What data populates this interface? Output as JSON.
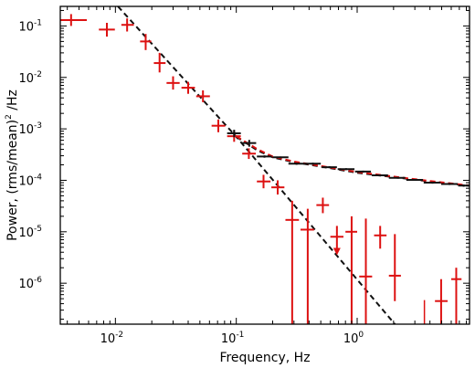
{
  "chart_data": {
    "type": "scatter",
    "title": "",
    "xlabel": "Frequency, Hz",
    "ylabel_prefix": "Power, (rms/mean)",
    "ylabel_sup": "2",
    "ylabel_suffix": " /Hz",
    "xscale": "log",
    "yscale": "log",
    "xlim": [
      0.0035,
      8.5
    ],
    "ylim": [
      1.6e-07,
      0.24
    ],
    "grid": false,
    "legend": "none",
    "x_ticks": [
      {
        "value": 0.01,
        "base": "10",
        "exp": "-2"
      },
      {
        "value": 0.1,
        "base": "10",
        "exp": "-1"
      },
      {
        "value": 1,
        "label": "10",
        "exp": "0"
      }
    ],
    "y_ticks": [
      {
        "value": 1e-06,
        "base": "10",
        "exp": "-6"
      },
      {
        "value": 1e-05,
        "base": "10",
        "exp": "-5"
      },
      {
        "value": 0.0001,
        "base": "10",
        "exp": "-4"
      },
      {
        "value": 0.001,
        "base": "10",
        "exp": "-3"
      },
      {
        "value": 0.01,
        "base": "10",
        "exp": "-2"
      },
      {
        "value": 0.1,
        "base": "10",
        "exp": "-1"
      }
    ],
    "colors": {
      "data": "#dd1111",
      "model": "#111111",
      "model_alt": "#dd1111",
      "axes": "#000000"
    },
    "series": [
      {
        "style": "red-crosses",
        "points": [
          {
            "x": 0.0043,
            "xlo": 0.0035,
            "xhi": 0.0058,
            "y": 0.13,
            "ylo": 0.1,
            "yhi": 0.17
          },
          {
            "x": 0.0085,
            "xlo": 0.0073,
            "xhi": 0.0099,
            "y": 0.085,
            "ylo": 0.062,
            "yhi": 0.115
          },
          {
            "x": 0.0125,
            "xlo": 0.0112,
            "xhi": 0.0142,
            "y": 0.105,
            "ylo": 0.078,
            "yhi": 0.14
          },
          {
            "x": 0.0178,
            "xlo": 0.016,
            "xhi": 0.0198,
            "y": 0.05,
            "ylo": 0.034,
            "yhi": 0.07
          },
          {
            "x": 0.0232,
            "xlo": 0.0208,
            "xhi": 0.026,
            "y": 0.019,
            "ylo": 0.0125,
            "yhi": 0.03
          },
          {
            "x": 0.03,
            "xlo": 0.0265,
            "xhi": 0.034,
            "y": 0.0078,
            "ylo": 0.0058,
            "yhi": 0.0105
          },
          {
            "x": 0.04,
            "xlo": 0.0352,
            "xhi": 0.0455,
            "y": 0.0063,
            "ylo": 0.0048,
            "yhi": 0.0082
          },
          {
            "x": 0.053,
            "xlo": 0.0466,
            "xhi": 0.0605,
            "y": 0.0043,
            "ylo": 0.0033,
            "yhi": 0.0056
          },
          {
            "x": 0.071,
            "xlo": 0.0625,
            "xhi": 0.081,
            "y": 0.00115,
            "ylo": 0.00086,
            "yhi": 0.00152
          },
          {
            "x": 0.096,
            "xlo": 0.084,
            "xhi": 0.109,
            "y": 0.00072,
            "ylo": 0.00056,
            "yhi": 0.00092
          },
          {
            "x": 0.127,
            "xlo": 0.112,
            "xhi": 0.145,
            "y": 0.00033,
            "ylo": 0.00026,
            "yhi": 0.00042
          },
          {
            "x": 0.168,
            "xlo": 0.148,
            "xhi": 0.192,
            "y": 9.5e-05,
            "ylo": 7e-05,
            "yhi": 0.000128
          },
          {
            "x": 0.22,
            "xlo": 0.195,
            "xhi": 0.25,
            "y": 7.3e-05,
            "ylo": 5.3e-05,
            "yhi": 0.0001
          },
          {
            "x": 0.29,
            "xlo": 0.255,
            "xhi": 0.33,
            "y": 1.7e-05,
            "ylo": 1.6e-07,
            "yhi": 4e-05
          },
          {
            "x": 0.39,
            "xlo": 0.34,
            "xhi": 0.44,
            "y": 1.1e-05,
            "ylo": 1.6e-07,
            "yhi": 2.8e-05
          },
          {
            "x": 0.52,
            "xlo": 0.46,
            "xhi": 0.585,
            "y": 3.3e-05,
            "ylo": 2.3e-05,
            "yhi": 4.6e-05
          },
          {
            "x": 0.68,
            "xlo": 0.6,
            "xhi": 0.77,
            "y": 8e-06,
            "ylo": 3.8e-06,
            "yhi": 1.3e-05
          },
          {
            "x": 0.9,
            "xlo": 0.8,
            "xhi": 1.0,
            "y": 1e-05,
            "ylo": 1.6e-07,
            "yhi": 2e-05
          },
          {
            "x": 1.18,
            "xlo": 1.04,
            "xhi": 1.33,
            "y": 1.35e-06,
            "ylo": 1.6e-07,
            "yhi": 1.8e-05
          },
          {
            "x": 1.55,
            "xlo": 1.38,
            "xhi": 1.75,
            "y": 8.5e-06,
            "ylo": 4.7e-06,
            "yhi": 1.3e-05
          },
          {
            "x": 2.05,
            "xlo": 1.83,
            "xhi": 2.3,
            "y": 1.4e-06,
            "ylo": 4.5e-07,
            "yhi": 9e-06
          },
          {
            "x": 4.95,
            "xlo": 4.4,
            "xhi": 5.6,
            "y": 4.5e-07,
            "ylo": 1.6e-07,
            "yhi": 1.2e-06
          },
          {
            "x": 6.6,
            "xlo": 6.0,
            "xhi": 7.3,
            "y": 1.2e-06,
            "ylo": 1.6e-07,
            "yhi": 2e-06
          }
        ],
        "upper_limit_arrows": [
          0.68
        ],
        "stray_bars": [
          {
            "x": 3.6,
            "ylo": 1.6e-07,
            "yhi": 4.7e-07
          }
        ]
      },
      {
        "style": "black-crosses",
        "points": [
          {
            "x": 0.096,
            "xlo": 0.084,
            "xhi": 0.109,
            "y": 0.00082,
            "ylo": 0.00069,
            "yhi": 0.00096
          },
          {
            "x": 0.128,
            "xlo": 0.112,
            "xhi": 0.146,
            "y": 0.00053,
            "ylo": 0.00045,
            "yhi": 0.00061
          },
          {
            "x": 0.171,
            "xlo": 0.148,
            "xhi": 0.197,
            "y": 0.00029,
            "ylo": 0.000275,
            "yhi": 0.000305
          },
          {
            "x": 0.232,
            "xlo": 0.2,
            "xhi": 0.27,
            "y": 0.00028,
            "ylo": 0.00027,
            "yhi": 0.00029
          },
          {
            "x": 0.315,
            "xlo": 0.27,
            "xhi": 0.37,
            "y": 0.00021,
            "ylo": 0.0002,
            "yhi": 0.00022
          },
          {
            "x": 0.43,
            "xlo": 0.37,
            "xhi": 0.5,
            "y": 0.00021,
            "ylo": 0.0002,
            "yhi": 0.00022
          },
          {
            "x": 0.59,
            "xlo": 0.51,
            "xhi": 0.68,
            "y": 0.00018,
            "ylo": 0.000172,
            "yhi": 0.000188
          },
          {
            "x": 0.81,
            "xlo": 0.69,
            "xhi": 0.95,
            "y": 0.000165,
            "ylo": 0.000158,
            "yhi": 0.000172
          },
          {
            "x": 1.12,
            "xlo": 0.96,
            "xhi": 1.3,
            "y": 0.000148,
            "ylo": 0.000142,
            "yhi": 0.000154
          },
          {
            "x": 1.55,
            "xlo": 1.32,
            "xhi": 1.8,
            "y": 0.000125,
            "ylo": 0.00012,
            "yhi": 0.00013
          },
          {
            "x": 2.15,
            "xlo": 1.83,
            "xhi": 2.5,
            "y": 0.000112,
            "ylo": 0.000108,
            "yhi": 0.000116
          },
          {
            "x": 3.0,
            "xlo": 2.55,
            "xhi": 3.5,
            "y": 0.000102,
            "ylo": 9.8e-05,
            "yhi": 0.000106
          },
          {
            "x": 4.2,
            "xlo": 3.55,
            "xhi": 4.9,
            "y": 9e-05,
            "ylo": 8.6e-05,
            "yhi": 9.4e-05
          },
          {
            "x": 5.8,
            "xlo": 4.95,
            "xhi": 6.8,
            "y": 8.5e-05,
            "ylo": 8.1e-05,
            "yhi": 8.9e-05
          },
          {
            "x": 7.6,
            "xlo": 6.85,
            "xhi": 8.5,
            "y": 7.9e-05,
            "ylo": 7.5e-05,
            "yhi": 8.3e-05
          }
        ]
      }
    ],
    "model_lines": [
      {
        "style": "black-dashed",
        "points": [
          [
            0.0105,
            0.24
          ],
          [
            0.1,
            0.0007
          ],
          [
            2.05,
            1.6e-07
          ]
        ]
      },
      {
        "style": "black-dashed",
        "points": [
          [
            0.1,
            0.0007
          ],
          [
            0.15,
            0.00038
          ],
          [
            0.2,
            0.00028
          ],
          [
            0.3,
            0.000225
          ],
          [
            0.5,
            0.000185
          ],
          [
            1.0,
            0.00014
          ],
          [
            2.0,
            0.000115
          ],
          [
            4.0,
            9.5e-05
          ],
          [
            8.5,
            7.8e-05
          ]
        ]
      },
      {
        "style": "red-dashed",
        "points": [
          [
            0.1,
            0.00072
          ],
          [
            0.15,
            0.0004
          ],
          [
            0.2,
            0.00029
          ],
          [
            0.3,
            0.000232
          ],
          [
            0.5,
            0.00019
          ],
          [
            1.0,
            0.000145
          ],
          [
            2.0,
            0.000118
          ],
          [
            4.0,
            9.7e-05
          ],
          [
            8.5,
            7.9e-05
          ]
        ]
      }
    ]
  }
}
